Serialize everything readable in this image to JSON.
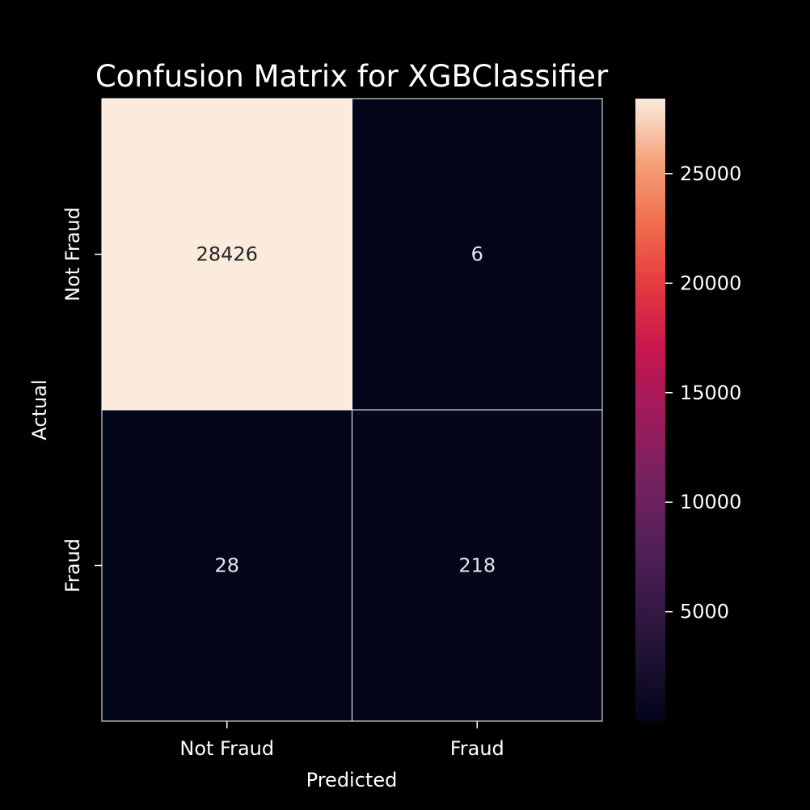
{
  "chart_data": {
    "type": "heatmap",
    "title": "Confusion Matrix for XGBClassifier",
    "xlabel": "Predicted",
    "ylabel": "Actual",
    "x_categories": [
      "Not Fraud",
      "Fraud"
    ],
    "y_categories": [
      "Not Fraud",
      "Fraud"
    ],
    "values": [
      [
        28426,
        6
      ],
      [
        28,
        218
      ]
    ],
    "colorbar": {
      "ticks": [
        5000,
        10000,
        15000,
        20000,
        25000
      ],
      "tick_labels": [
        "5000",
        "10000",
        "15000",
        "20000",
        "25000"
      ],
      "range": [
        6,
        28426
      ],
      "colormap": "rocket"
    },
    "background_color": "#000000",
    "text_color": "#ffffff",
    "cell_text_dark": "#262626",
    "cell_text_light": "#e6e6e6",
    "grid_line_color": "#ffffff"
  }
}
